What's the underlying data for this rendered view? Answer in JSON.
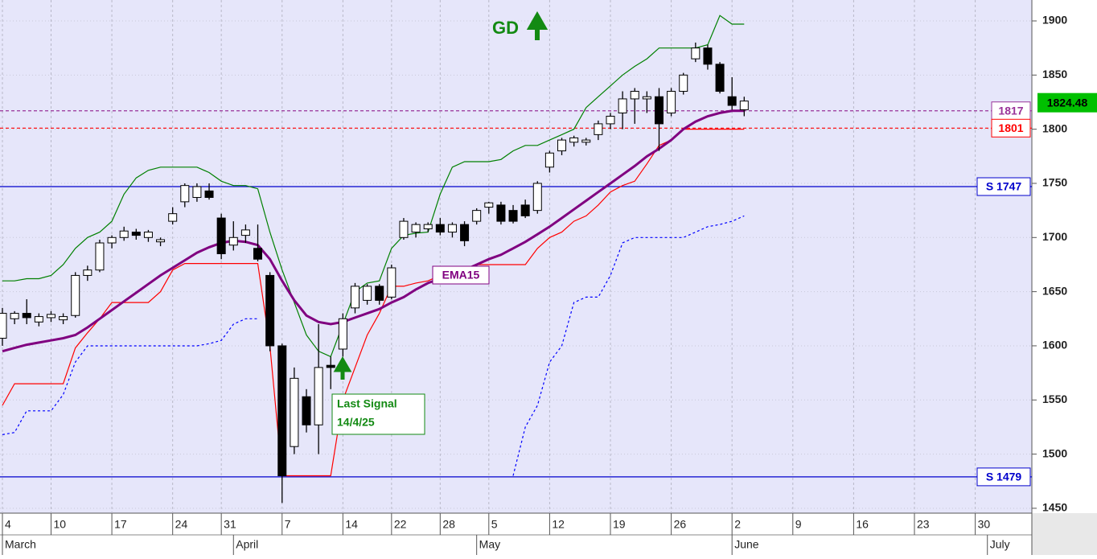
{
  "chart_data": {
    "type": "candlestick",
    "categories": [
      "4",
      null,
      null,
      null,
      "10",
      null,
      null,
      null,
      null,
      "17",
      null,
      null,
      null,
      null,
      "24",
      null,
      null,
      null,
      "31",
      null,
      null,
      null,
      null,
      "7",
      null,
      null,
      null,
      null,
      "14",
      null,
      null,
      null,
      "22",
      null,
      null,
      null,
      "28",
      null,
      null,
      null,
      "5",
      null,
      null,
      null,
      null,
      "12",
      null,
      null,
      null,
      null,
      "19",
      null,
      null,
      null,
      null,
      "26",
      null,
      null,
      null,
      null,
      "2",
      null,
      null,
      null,
      null,
      "9",
      null,
      null,
      null,
      null,
      "16",
      null,
      null,
      null,
      null,
      "23",
      null,
      null,
      null,
      null,
      "30",
      null,
      null,
      null,
      null
    ],
    "month_categories": [
      "March",
      null,
      null,
      null,
      null,
      null,
      null,
      null,
      null,
      null,
      null,
      null,
      null,
      null,
      null,
      null,
      null,
      null,
      null,
      "April",
      null,
      null,
      null,
      null,
      null,
      null,
      null,
      null,
      null,
      null,
      null,
      null,
      null,
      null,
      null,
      null,
      null,
      null,
      null,
      "May",
      null,
      null,
      null,
      null,
      null,
      null,
      null,
      null,
      null,
      null,
      null,
      null,
      null,
      null,
      null,
      null,
      null,
      null,
      null,
      null,
      "June",
      null,
      null,
      null,
      null,
      null,
      null,
      null,
      null,
      null,
      null,
      null,
      null,
      null,
      null,
      null,
      null,
      null,
      null,
      null,
      null,
      "July",
      null,
      null,
      null
    ],
    "open": [
      1607,
      1625,
      1630,
      1622,
      1626,
      1624,
      1628,
      1665,
      1670,
      1695,
      1700,
      1705,
      1700,
      1696,
      1715,
      1733,
      1737,
      1743,
      1718,
      1693,
      1702,
      1690,
      1665,
      1600,
      1507,
      1553,
      1527,
      1582,
      1597,
      1635,
      1642,
      1655,
      1645,
      1700,
      1705,
      1708,
      1712,
      1705,
      1712,
      1715,
      1728,
      1730,
      1725,
      1730,
      1725,
      1765,
      1780,
      1788,
      1788,
      1795,
      1805,
      1815,
      1828,
      1828,
      1830,
      1815,
      1835,
      1865,
      1875,
      1860,
      1830,
      1818,
      null,
      null,
      null,
      null,
      null,
      null,
      null,
      null,
      null,
      null,
      null,
      null,
      null,
      null,
      null,
      null,
      null,
      null,
      null,
      null,
      null,
      null,
      null
    ],
    "high": [
      1635,
      1632,
      1643,
      1630,
      1632,
      1630,
      1668,
      1674,
      1698,
      1702,
      1710,
      1708,
      1707,
      1700,
      1728,
      1750,
      1750,
      1750,
      1722,
      1715,
      1712,
      1712,
      1668,
      1602,
      1580,
      1560,
      1620,
      1590,
      1630,
      1658,
      1657,
      1657,
      1675,
      1718,
      1714,
      1714,
      1718,
      1714,
      1715,
      1727,
      1733,
      1733,
      1730,
      1735,
      1752,
      1780,
      1792,
      1794,
      1792,
      1808,
      1815,
      1835,
      1838,
      1835,
      1838,
      1838,
      1852,
      1880,
      1878,
      1862,
      1848,
      1830,
      null,
      null,
      null,
      null,
      null,
      null,
      null,
      null,
      null,
      null,
      null,
      null,
      null,
      null,
      null,
      null,
      null,
      null,
      null,
      null,
      null,
      null,
      null
    ],
    "low": [
      1600,
      1620,
      1620,
      1618,
      1622,
      1620,
      1626,
      1660,
      1668,
      1690,
      1697,
      1698,
      1696,
      1692,
      1712,
      1728,
      1733,
      1735,
      1680,
      1688,
      1695,
      1678,
      1595,
      1455,
      1500,
      1520,
      1500,
      1560,
      1590,
      1630,
      1638,
      1638,
      1643,
      1698,
      1700,
      1705,
      1702,
      1700,
      1692,
      1712,
      1722,
      1712,
      1713,
      1718,
      1722,
      1760,
      1776,
      1784,
      1785,
      1790,
      1800,
      1800,
      1805,
      1815,
      1780,
      1812,
      1832,
      1862,
      1855,
      1833,
      1818,
      1812,
      null,
      null,
      null,
      null,
      null,
      null,
      null,
      null,
      null,
      null,
      null,
      null,
      null,
      null,
      null,
      null,
      null,
      null,
      null,
      null,
      null,
      null,
      null
    ],
    "close": [
      1630,
      1630,
      1626,
      1627,
      1629,
      1627,
      1665,
      1670,
      1695,
      1700,
      1706,
      1702,
      1705,
      1698,
      1722,
      1748,
      1747,
      1737,
      1685,
      1700,
      1707,
      1680,
      1600,
      1480,
      1570,
      1527,
      1580,
      1580,
      1625,
      1655,
      1655,
      1642,
      1672,
      1715,
      1712,
      1712,
      1705,
      1712,
      1697,
      1725,
      1732,
      1715,
      1715,
      1720,
      1750,
      1778,
      1790,
      1792,
      1790,
      1805,
      1812,
      1828,
      1835,
      1830,
      1805,
      1835,
      1850,
      1875,
      1860,
      1835,
      1822,
      1826,
      null,
      null,
      null,
      null,
      null,
      null,
      null,
      null,
      null,
      null,
      null,
      null,
      null,
      null,
      null,
      null,
      null,
      null,
      null,
      null,
      null,
      null,
      null
    ],
    "lines": [
      {
        "color": "#008000",
        "width": 1.2,
        "dash": "none",
        "values": [
          1660,
          1660,
          1662,
          1662,
          1665,
          1675,
          1690,
          1700,
          1705,
          1715,
          1740,
          1755,
          1762,
          1765,
          1765,
          1765,
          1765,
          1760,
          1752,
          1748,
          1748,
          1745,
          1705,
          1670,
          1640,
          1610,
          1595,
          1590,
          1620,
          1650,
          1658,
          1660,
          1690,
          1702,
          1704,
          1705,
          1740,
          1765,
          1770,
          1770,
          1770,
          1772,
          1780,
          1785,
          1785,
          1790,
          1795,
          1800,
          1820,
          1830,
          1840,
          1850,
          1858,
          1865,
          1875,
          1875,
          1875,
          1875,
          1878,
          1905,
          1897,
          1897,
          null,
          null,
          null,
          null,
          null,
          null,
          null,
          null,
          null,
          null,
          null,
          null,
          null,
          null,
          null,
          null,
          null,
          null,
          null,
          null,
          null,
          null,
          null
        ]
      },
      {
        "color": "#ff0000",
        "width": 1.2,
        "dash": "none",
        "values": [
          1545,
          1565,
          1565,
          1565,
          1565,
          1565,
          1598,
          1612,
          1625,
          1640,
          1640,
          1640,
          1640,
          1650,
          1670,
          1676,
          1676,
          1676,
          1676,
          1676,
          1676,
          1676,
          1600,
          1480,
          1480,
          1480,
          1480,
          1480,
          1550,
          1580,
          1610,
          1630,
          1655,
          1655,
          1658,
          1660,
          1665,
          1665,
          1665,
          1675,
          1675,
          1675,
          1675,
          1675,
          1690,
          1700,
          1705,
          1715,
          1720,
          1730,
          1742,
          1748,
          1752,
          1768,
          1785,
          1790,
          1800,
          1800,
          1800,
          1800,
          1800,
          1800,
          null,
          null,
          null,
          null,
          null,
          null,
          null,
          null,
          null,
          null,
          null,
          null,
          null,
          null,
          null,
          null,
          null,
          null,
          null,
          null,
          null,
          null,
          null
        ]
      },
      {
        "color": "#0000ff",
        "width": 1.2,
        "dash": "3,3",
        "values": [
          1518,
          1520,
          1540,
          1540,
          1540,
          1555,
          1585,
          1600,
          1600,
          1600,
          1600,
          1600,
          1600,
          1600,
          1600,
          1600,
          1600,
          1602,
          1605,
          1620,
          1625,
          1625,
          null,
          null,
          null,
          null,
          null,
          null,
          null,
          null,
          null,
          null,
          null,
          null,
          null,
          null,
          null,
          null,
          null,
          null,
          null,
          null,
          1480,
          1525,
          1545,
          1585,
          1600,
          1640,
          1645,
          1645,
          1665,
          1695,
          1700,
          1700,
          1700,
          1700,
          1700,
          1705,
          1710,
          1712,
          1715,
          1720,
          null,
          null,
          null,
          null,
          null,
          null,
          null,
          null,
          null,
          null,
          null,
          null,
          null,
          null,
          null,
          null,
          null,
          null,
          null,
          null,
          null,
          null,
          null
        ]
      },
      {
        "name": "EMA15",
        "color": "#800080",
        "width": 3,
        "dash": "none",
        "values": [
          1595,
          1598,
          1601,
          1603,
          1605,
          1607,
          1610,
          1617,
          1625,
          1633,
          1641,
          1649,
          1657,
          1665,
          1672,
          1679,
          1686,
          1691,
          1695,
          1697,
          1696,
          1693,
          1680,
          1660,
          1642,
          1628,
          1622,
          1620,
          1622,
          1626,
          1630,
          1634,
          1640,
          1645,
          1652,
          1658,
          1662,
          1666,
          1670,
          1675,
          1680,
          1684,
          1690,
          1696,
          1703,
          1710,
          1718,
          1726,
          1734,
          1742,
          1750,
          1758,
          1766,
          1775,
          1782,
          1790,
          1800,
          1807,
          1812,
          1815,
          1817,
          1817,
          null,
          null,
          null,
          null,
          null,
          null,
          null,
          null,
          null,
          null,
          null,
          null,
          null,
          null,
          null,
          null,
          null,
          null,
          null,
          null,
          null,
          null,
          null
        ]
      }
    ],
    "levels": [
      {
        "value": 1747,
        "label": "S 1747",
        "color": "#0000cc",
        "dash": "none"
      },
      {
        "value": 1479,
        "label": "S 1479",
        "color": "#0000cc",
        "dash": "none"
      },
      {
        "value": 1817,
        "color": "#993399",
        "dash": "4,3"
      },
      {
        "value": 1801,
        "color": "#ff0000",
        "dash": "4,3"
      }
    ],
    "last_price": 1824.48,
    "annotations": {
      "signal": "GD",
      "last_signal": "Last Signal",
      "last_signal_date": "14/4/25"
    },
    "ylim": [
      1445.5,
      1919.3
    ],
    "yticks": [
      1450,
      1500,
      1550,
      1600,
      1650,
      1700,
      1750,
      1800,
      1850,
      1900
    ],
    "grid": true
  }
}
